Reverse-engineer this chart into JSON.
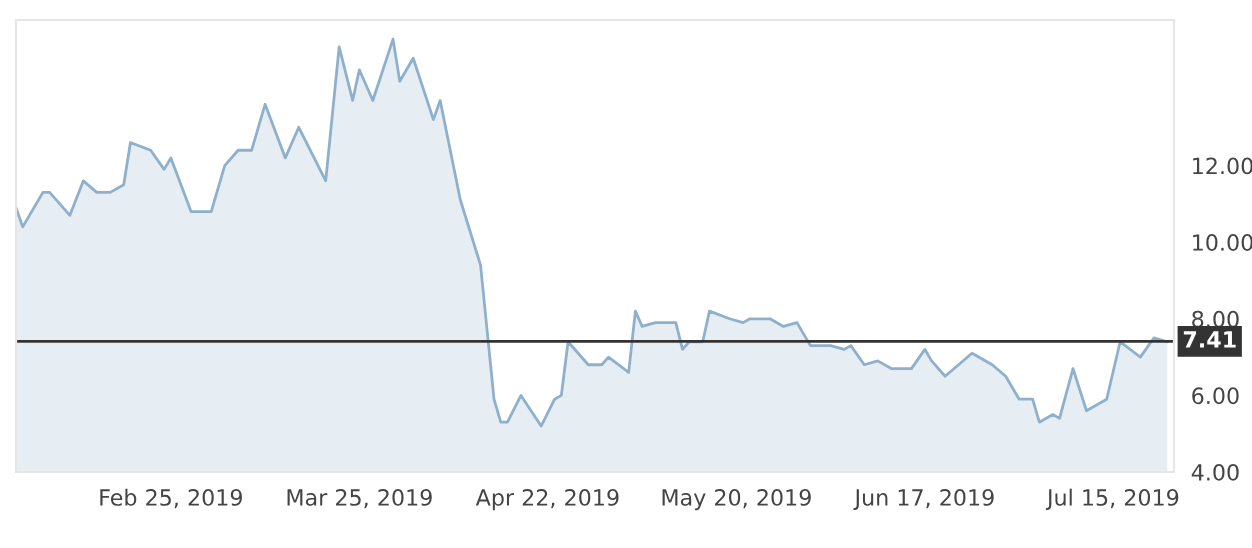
{
  "chart_data": {
    "type": "area",
    "x": [
      "2019-02-02",
      "2019-02-03",
      "2019-02-06",
      "2019-02-07",
      "2019-02-10",
      "2019-02-12",
      "2019-02-14",
      "2019-02-16",
      "2019-02-18",
      "2019-02-19",
      "2019-02-22",
      "2019-02-24",
      "2019-02-25",
      "2019-02-28",
      "2019-03-03",
      "2019-03-05",
      "2019-03-07",
      "2019-03-09",
      "2019-03-11",
      "2019-03-14",
      "2019-03-16",
      "2019-03-18",
      "2019-03-20",
      "2019-03-22",
      "2019-03-24",
      "2019-03-25",
      "2019-03-27",
      "2019-03-30",
      "2019-03-31",
      "2019-04-02",
      "2019-04-05",
      "2019-04-06",
      "2019-04-09",
      "2019-04-12",
      "2019-04-14",
      "2019-04-15",
      "2019-04-16",
      "2019-04-18",
      "2019-04-21",
      "2019-04-23",
      "2019-04-24",
      "2019-04-25",
      "2019-04-28",
      "2019-04-30",
      "2019-05-01",
      "2019-05-04",
      "2019-05-05",
      "2019-05-06",
      "2019-05-08",
      "2019-05-11",
      "2019-05-12",
      "2019-05-13",
      "2019-05-15",
      "2019-05-16",
      "2019-05-19",
      "2019-05-21",
      "2019-05-22",
      "2019-05-25",
      "2019-05-27",
      "2019-05-29",
      "2019-05-31",
      "2019-06-03",
      "2019-06-05",
      "2019-06-06",
      "2019-06-08",
      "2019-06-10",
      "2019-06-12",
      "2019-06-15",
      "2019-06-17",
      "2019-06-18",
      "2019-06-20",
      "2019-06-22",
      "2019-06-24",
      "2019-06-27",
      "2019-06-29",
      "2019-07-01",
      "2019-07-03",
      "2019-07-04",
      "2019-07-06",
      "2019-07-07",
      "2019-07-09",
      "2019-07-11",
      "2019-07-14",
      "2019-07-16",
      "2019-07-19",
      "2019-07-21",
      "2019-07-23"
    ],
    "series": [
      {
        "color": "#8fb0cc",
        "values": [
          10.9,
          10.4,
          11.3,
          11.3,
          10.7,
          11.6,
          11.3,
          11.3,
          11.5,
          12.6,
          12.4,
          11.9,
          12.2,
          10.8,
          10.8,
          12.0,
          12.4,
          12.4,
          13.6,
          12.2,
          13.0,
          12.3,
          11.6,
          15.1,
          13.7,
          14.5,
          13.7,
          15.3,
          14.2,
          14.8,
          13.2,
          13.7,
          11.1,
          9.4,
          5.9,
          5.3,
          5.3,
          6.0,
          5.2,
          5.9,
          6.0,
          7.4,
          6.8,
          6.8,
          7.0,
          6.6,
          8.2,
          7.8,
          7.9,
          7.9,
          7.2,
          7.4,
          7.4,
          8.2,
          8.0,
          7.9,
          8.0,
          8.0,
          7.8,
          7.9,
          7.3,
          7.3,
          7.2,
          7.3,
          6.8,
          6.9,
          6.7,
          6.7,
          7.2,
          6.9,
          6.5,
          6.8,
          7.1,
          6.8,
          6.5,
          5.9,
          5.9,
          5.3,
          5.5,
          5.4,
          6.7,
          5.6,
          5.9,
          7.4,
          7.0,
          7.5,
          7.4
        ]
      }
    ],
    "xlim": [
      "2019-02-02",
      "2019-07-24"
    ],
    "xticks": [
      {
        "value": "2019-02-25",
        "label": "Feb 25, 2019"
      },
      {
        "value": "2019-03-25",
        "label": "Mar 25, 2019"
      },
      {
        "value": "2019-04-22",
        "label": "Apr 22, 2019"
      },
      {
        "value": "2019-05-20",
        "label": "May 20, 2019"
      },
      {
        "value": "2019-06-17",
        "label": "Jun 17, 2019"
      },
      {
        "value": "2019-07-15",
        "label": "Jul 15, 2019"
      }
    ],
    "ylim": [
      4,
      15.8
    ],
    "yticks": [
      {
        "value": 4,
        "label": "4.00"
      },
      {
        "value": 6,
        "label": "6.00"
      },
      {
        "value": 8,
        "label": "8.00"
      },
      {
        "value": 10,
        "label": "10.00"
      },
      {
        "value": 12,
        "label": "12.00"
      }
    ],
    "ref_lines": [
      {
        "axis": "y",
        "value": 7.41,
        "label": "7.41",
        "color": "#333333"
      }
    ]
  }
}
